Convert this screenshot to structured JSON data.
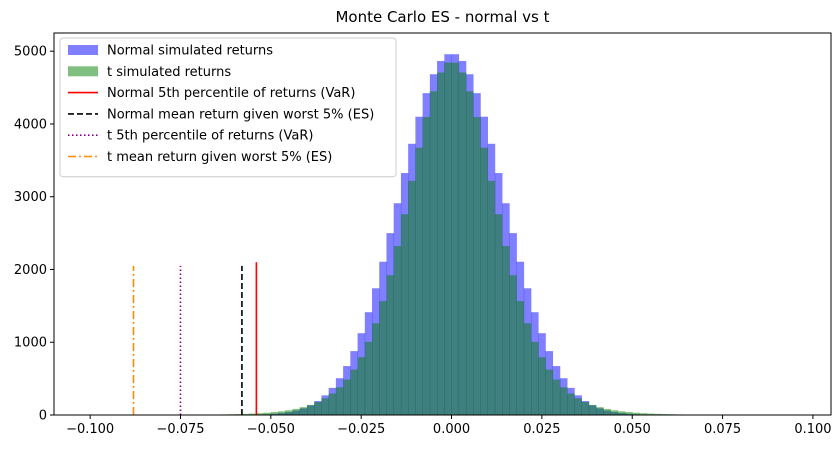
{
  "chart_data": {
    "type": "histogram",
    "title": "Monte Carlo ES - normal vs t",
    "xlim": [
      -0.11,
      0.105
    ],
    "ylim": [
      0,
      5250
    ],
    "x_ticks": [
      -0.1,
      -0.075,
      -0.05,
      -0.025,
      0.0,
      0.025,
      0.05,
      0.075,
      0.1
    ],
    "x_tick_labels": [
      "−0.100",
      "−0.075",
      "−0.050",
      "−0.025",
      "0.000",
      "0.025",
      "0.050",
      "0.075",
      "0.100"
    ],
    "y_ticks": [
      0,
      1000,
      2000,
      3000,
      4000,
      5000
    ],
    "y_tick_labels": [
      "0",
      "1000",
      "2000",
      "3000",
      "4000",
      "5000"
    ],
    "bins": {
      "start": -0.1,
      "end": 0.1,
      "count": 100
    },
    "series": [
      {
        "name": "Normal simulated returns",
        "color": "#0000ff",
        "opacity": 0.5,
        "mean": 0.0,
        "std": 0.0145,
        "peak": 4970
      },
      {
        "name": "t simulated returns",
        "color": "#008000",
        "opacity": 0.5,
        "mean": 0.0,
        "std": 0.0145,
        "df": 8,
        "peak": 4860
      }
    ],
    "vlines": [
      {
        "name": "Normal 5th percentile of returns (VaR)",
        "x": -0.054,
        "ymax": 2100,
        "color": "#ff0000",
        "style": "solid"
      },
      {
        "name": "Normal mean return given worst 5% (ES)",
        "x": -0.058,
        "ymax": 2050,
        "color": "#000000",
        "style": "dashed"
      },
      {
        "name": "t 5th percentile of returns (VaR)",
        "x": -0.075,
        "ymax": 2050,
        "color": "#800080",
        "style": "dotted"
      },
      {
        "name": "t mean return given worst 5% (ES)",
        "x": -0.088,
        "ymax": 2050,
        "color": "#ff8c00",
        "style": "dashdot"
      }
    ],
    "legend": {
      "position": "upper-left",
      "entries": [
        {
          "label": "Normal simulated returns",
          "kind": "patch",
          "color": "#0000ff",
          "opacity": 0.5
        },
        {
          "label": "t simulated returns",
          "kind": "patch",
          "color": "#008000",
          "opacity": 0.5
        },
        {
          "label": "Normal 5th percentile of returns (VaR)",
          "kind": "line",
          "color": "#ff0000",
          "style": "solid"
        },
        {
          "label": "Normal mean return given worst 5% (ES)",
          "kind": "line",
          "color": "#000000",
          "style": "dashed"
        },
        {
          "label": "t 5th percentile of returns (VaR)",
          "kind": "line",
          "color": "#800080",
          "style": "dotted"
        },
        {
          "label": "t mean return given worst 5% (ES)",
          "kind": "line",
          "color": "#ff8c00",
          "style": "dashdot"
        }
      ]
    }
  }
}
